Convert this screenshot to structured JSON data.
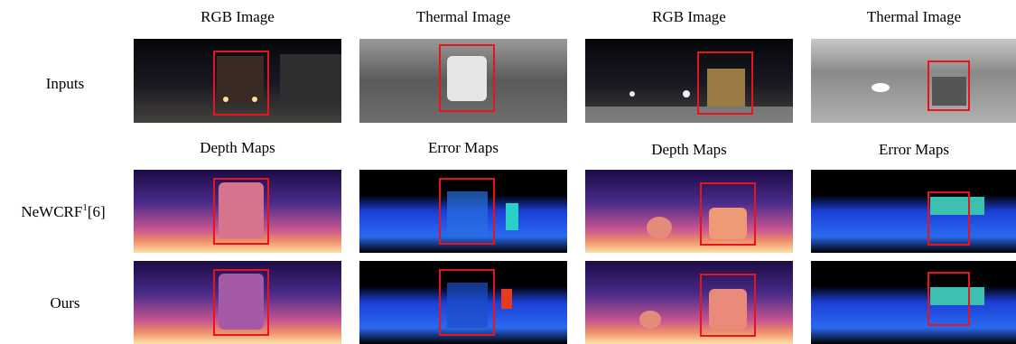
{
  "header_row1": [
    "RGB Image",
    "Thermal Image",
    "RGB Image",
    "Thermal Image"
  ],
  "header_row2": [
    "Depth Maps",
    "Error Maps",
    "Depth Maps",
    "Error Maps"
  ],
  "row_labels": {
    "inputs": "Inputs",
    "newcrf": {
      "name": "NeWCRF",
      "sup": "1",
      "ref": "[6]"
    },
    "ours": "Ours"
  }
}
